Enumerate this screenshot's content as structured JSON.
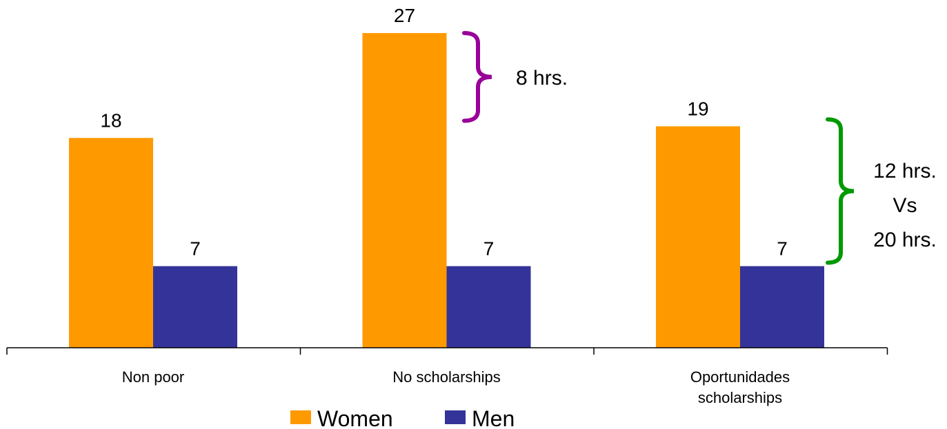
{
  "chart_data": {
    "type": "bar",
    "categories": [
      [
        "Non poor"
      ],
      [
        "No scholarships"
      ],
      [
        "Oportunidades",
        "scholarships"
      ]
    ],
    "series": [
      {
        "name": "Women",
        "values": [
          18,
          27,
          19
        ],
        "color": "#FF9900"
      },
      {
        "name": "Men",
        "values": [
          7,
          7,
          7
        ],
        "color": "#333399"
      }
    ],
    "value_labels": [
      [
        "18",
        "27",
        "19"
      ],
      [
        "7",
        "7",
        "7"
      ]
    ],
    "ylim": [
      0,
      30
    ],
    "grid": false,
    "legend_placement": "bottom-center",
    "annotations": [
      {
        "label": "8 hrs.",
        "brace_from": 19,
        "brace_to": 27,
        "color": "#990099"
      },
      {
        "lines": [
          "12 hrs.",
          "Vs",
          "20 hrs."
        ],
        "brace_from": 7,
        "brace_to": 19,
        "color": "#009900"
      }
    ]
  }
}
